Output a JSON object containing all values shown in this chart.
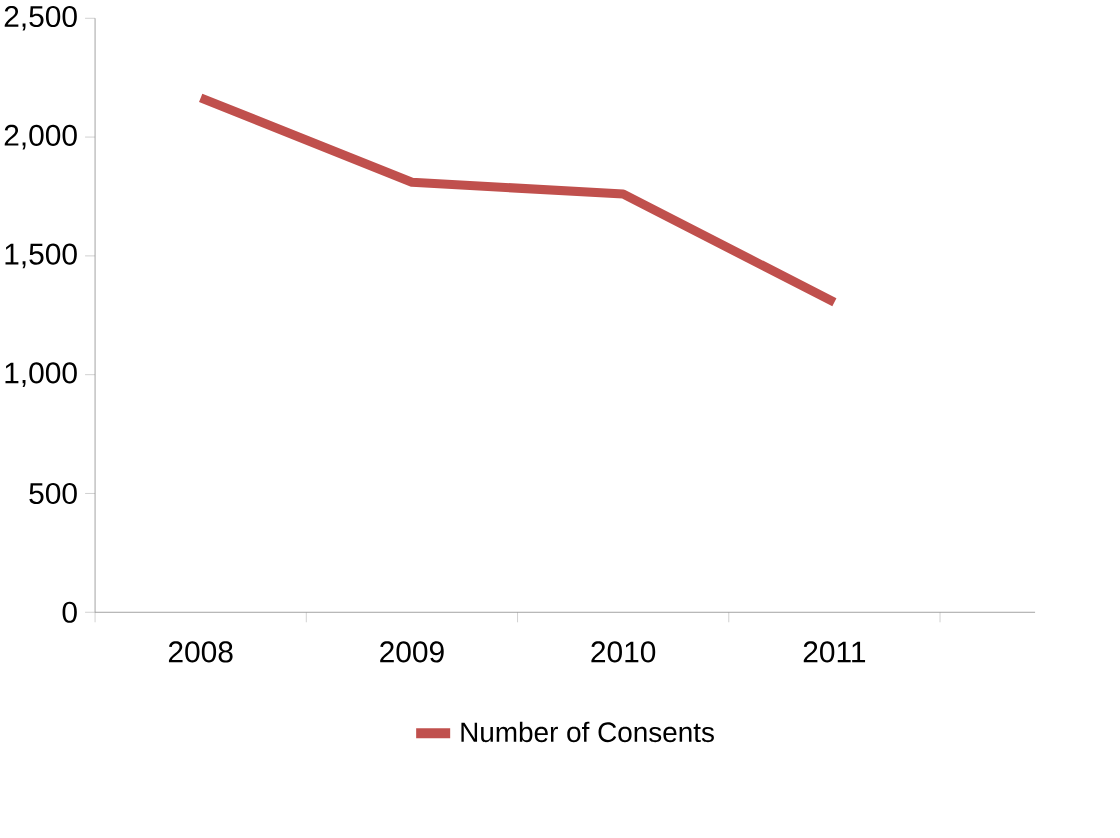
{
  "chart_data": {
    "type": "line",
    "categories": [
      "2008",
      "2009",
      "2010",
      "2011"
    ],
    "series": [
      {
        "name": "Number of Consents",
        "color": "#c0504d",
        "values": [
          2165,
          1810,
          1760,
          1305
        ]
      }
    ],
    "ylim": [
      0,
      2500
    ],
    "yticks": [
      0,
      {
        "value": 500,
        "label": "500"
      },
      {
        "value": 1000,
        "label": "1,000"
      },
      {
        "value": 1500,
        "label": "1,500"
      },
      {
        "value": 2000,
        "label": "2,000"
      },
      {
        "value": 2500,
        "label": "2,500"
      }
    ],
    "grid": false,
    "legend": "bottom",
    "marker": "none",
    "line_style": "solid"
  }
}
